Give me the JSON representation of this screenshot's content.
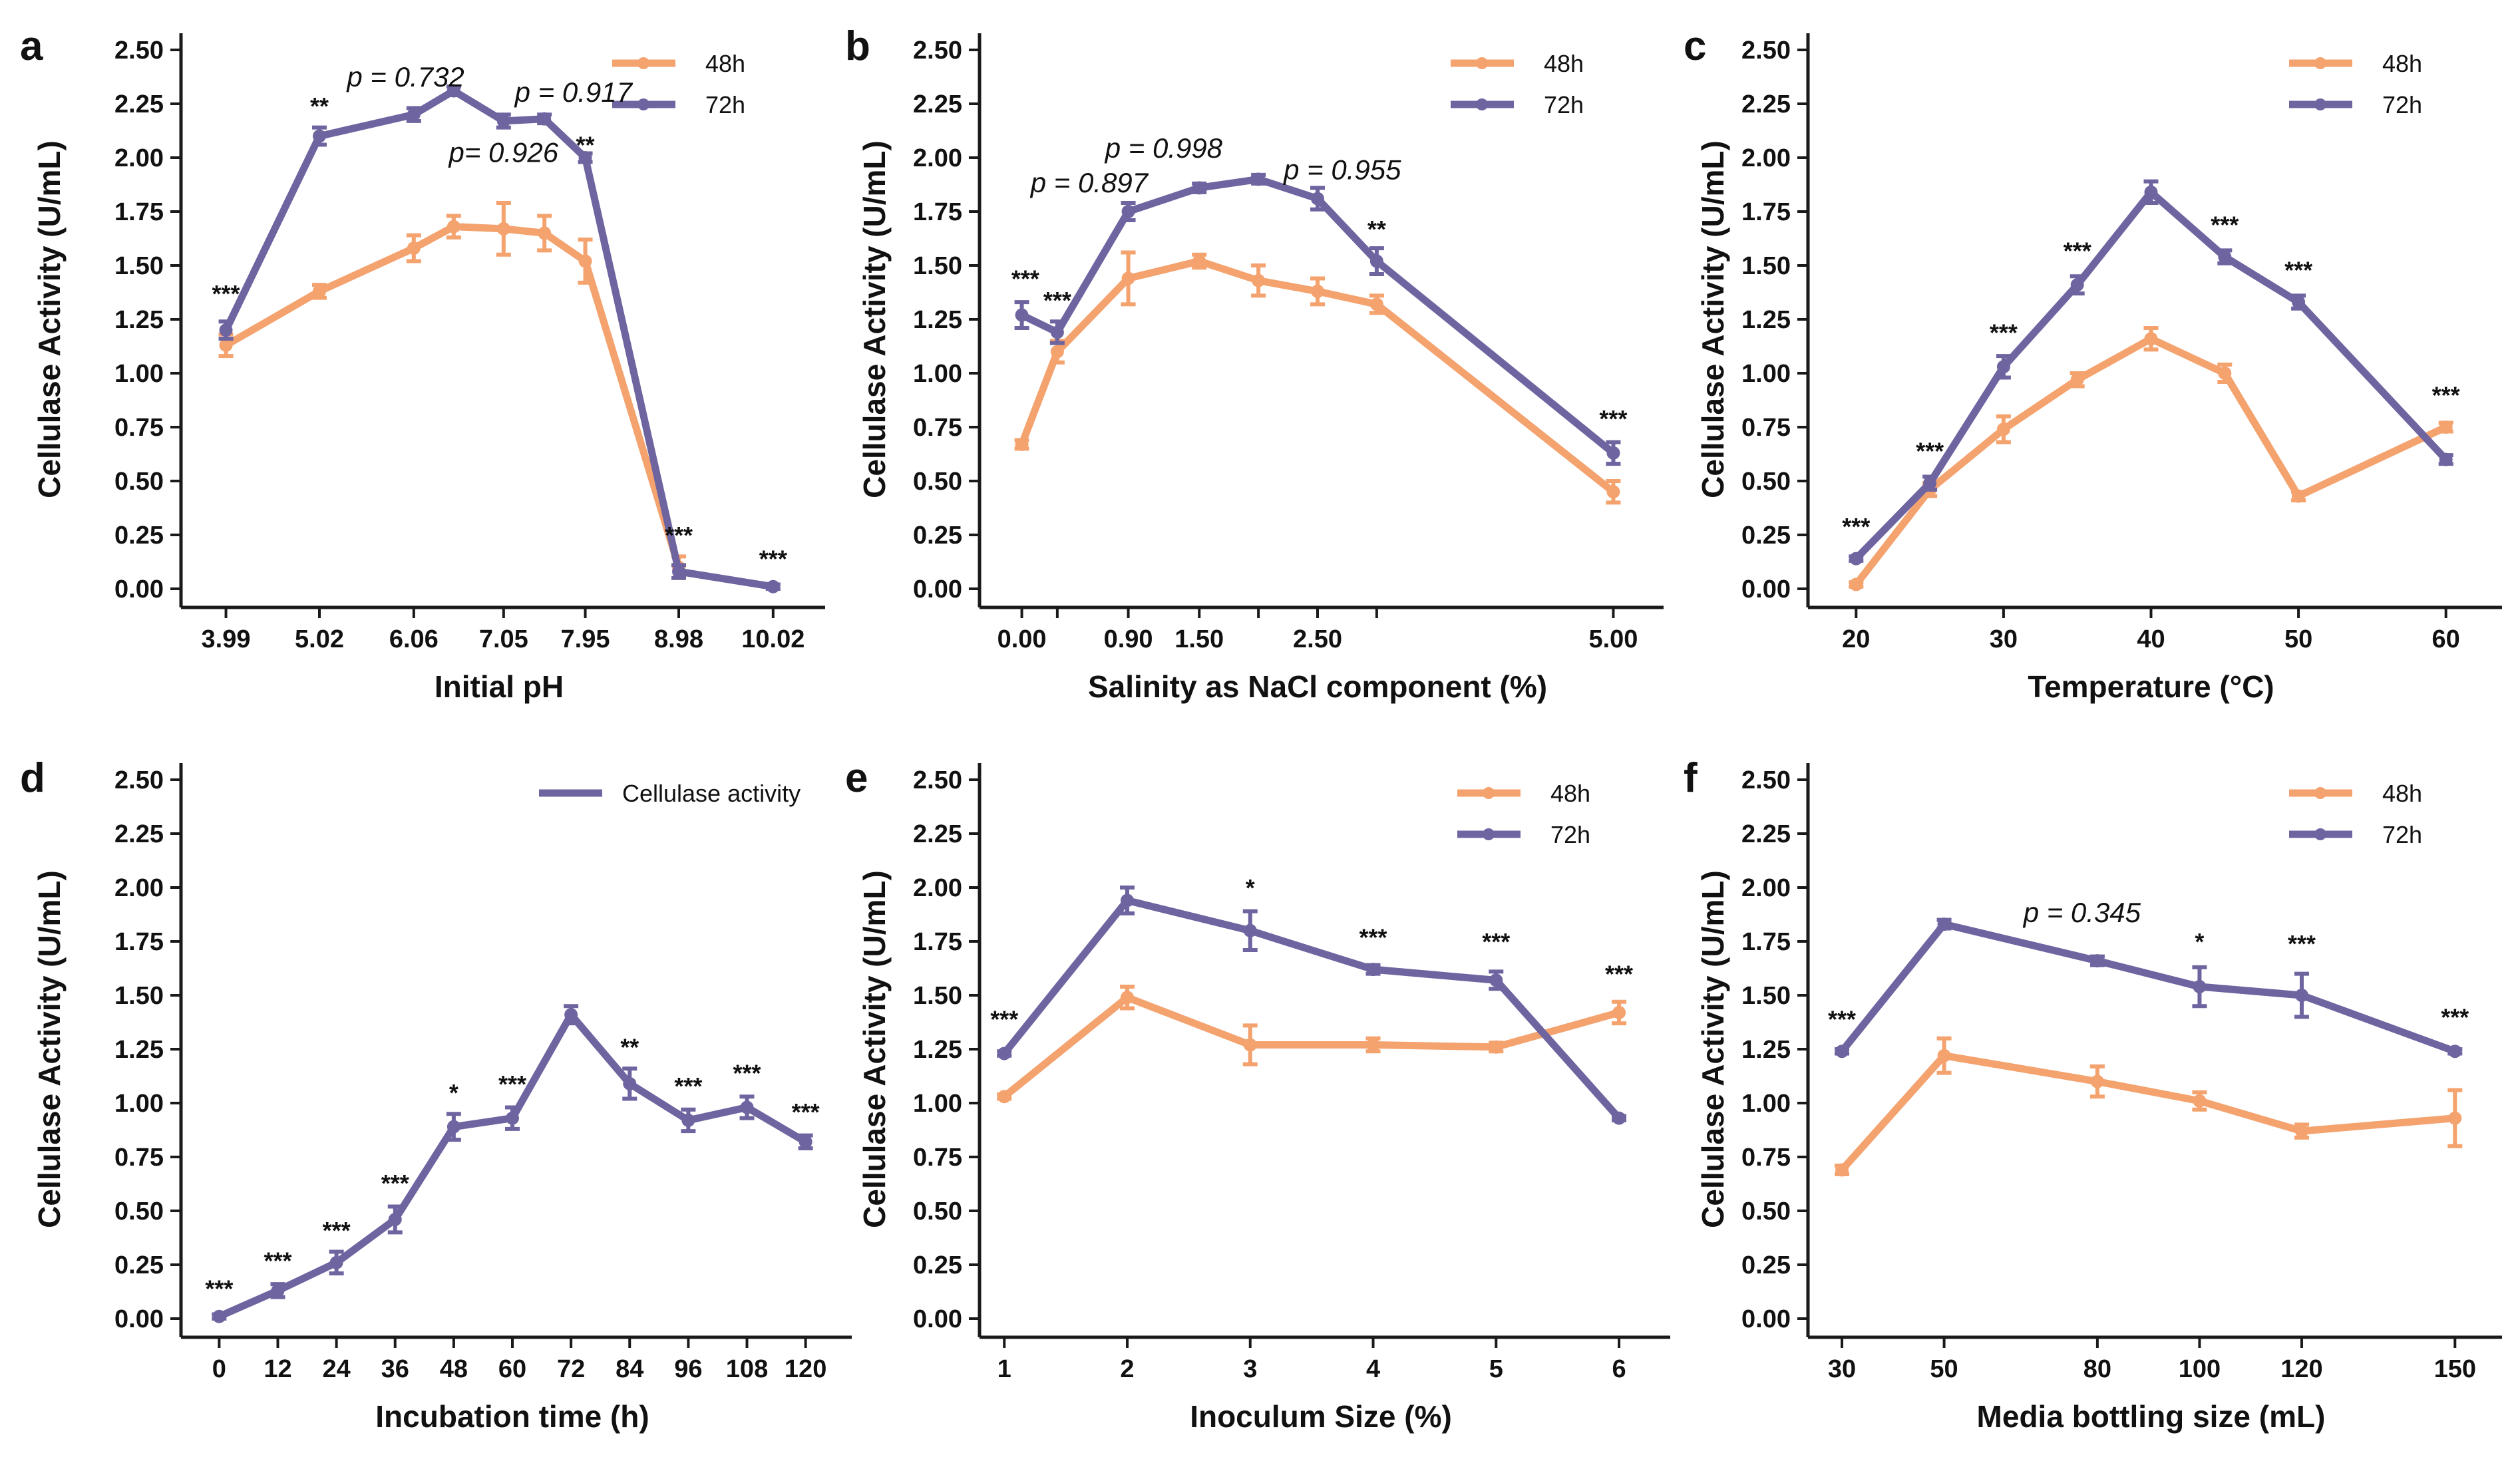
{
  "colors": {
    "s48h": "#F4A26E",
    "s72h": "#6E64A0",
    "axis": "#1a1a1a",
    "text": "#111111"
  },
  "chart_data": [
    {
      "type": "line",
      "panel": "a",
      "xlabel": "Initial pH",
      "ylabel": "Cellulase Activity (U/mL)",
      "ylim": [
        0,
        2.5
      ],
      "yticks": [
        "0.00",
        "0.25",
        "0.50",
        "0.75",
        "1.00",
        "1.25",
        "1.50",
        "1.75",
        "2.00",
        "2.25",
        "2.50"
      ],
      "xlim": [
        3.7,
        10.3
      ],
      "xticks": [
        3.99,
        5.02,
        6.06,
        7.05,
        7.95,
        8.98,
        10.02
      ],
      "xtick_labels": [
        "3.99",
        "5.02",
        "6.06",
        "7.05",
        "7.95",
        "8.98",
        "10.02"
      ],
      "legend": {
        "position": "top-right",
        "entries": [
          "48h",
          "72h"
        ]
      },
      "series": [
        {
          "name": "48h",
          "x": [
            3.99,
            5.02,
            6.06,
            6.5,
            7.05,
            7.5,
            7.95,
            8.98
          ],
          "y": [
            1.13,
            1.38,
            1.58,
            1.68,
            1.67,
            1.65,
            1.52,
            0.1
          ],
          "err": [
            0.05,
            0.03,
            0.06,
            0.05,
            0.12,
            0.08,
            0.1,
            0.05
          ]
        },
        {
          "name": "72h",
          "x": [
            3.99,
            5.02,
            6.06,
            6.5,
            7.05,
            7.5,
            7.95,
            8.98,
            10.02
          ],
          "y": [
            1.2,
            2.1,
            2.2,
            2.31,
            2.17,
            2.18,
            2.0,
            0.08,
            0.01
          ],
          "err": [
            0.04,
            0.04,
            0.03,
            0.02,
            0.03,
            0.02,
            0.02,
            0.03,
            0.01
          ]
        }
      ],
      "annotations": [
        {
          "text": "***",
          "x": 3.99,
          "y": 1.33,
          "style": "sig"
        },
        {
          "text": "**",
          "x": 5.02,
          "y": 2.2,
          "style": "sig"
        },
        {
          "text": "p = 0.732",
          "x": 5.97,
          "y": 2.33,
          "style": "p"
        },
        {
          "text": "p = 0.917",
          "x": 7.82,
          "y": 2.26,
          "style": "p"
        },
        {
          "text": "p= 0.926",
          "x": 7.05,
          "y": 1.98,
          "style": "p"
        },
        {
          "text": "**",
          "x": 7.95,
          "y": 2.02,
          "style": "sig"
        },
        {
          "text": "***",
          "x": 8.98,
          "y": 0.21,
          "style": "sig"
        },
        {
          "text": "***",
          "x": 10.02,
          "y": 0.1,
          "style": "sig"
        }
      ]
    },
    {
      "type": "line",
      "panel": "b",
      "xlabel": "Salinity as NaCl component (%)",
      "ylabel": "Cellulase Activity (U/mL)",
      "ylim": [
        0,
        2.5
      ],
      "yticks": [
        "0.00",
        "0.25",
        "0.50",
        "0.75",
        "1.00",
        "1.25",
        "1.50",
        "1.75",
        "2.00",
        "2.25",
        "2.50"
      ],
      "xlim": [
        -0.2,
        5.2
      ],
      "xticks": [
        0.0,
        0.3,
        0.9,
        1.5,
        2.0,
        2.5,
        3.0,
        5.0
      ],
      "xtick_labels": [
        "0.00",
        "",
        "0.90",
        "1.50",
        "",
        "2.50",
        "",
        "5.00"
      ],
      "legend": {
        "position": "top-right",
        "entries": [
          "48h",
          "72h"
        ]
      },
      "series": [
        {
          "name": "48h",
          "x": [
            0.0,
            0.3,
            0.9,
            1.5,
            2.0,
            2.5,
            3.0,
            5.0
          ],
          "y": [
            0.67,
            1.1,
            1.44,
            1.52,
            1.43,
            1.38,
            1.32,
            0.45
          ],
          "err": [
            0.02,
            0.05,
            0.12,
            0.03,
            0.07,
            0.06,
            0.04,
            0.05
          ]
        },
        {
          "name": "72h",
          "x": [
            0.0,
            0.3,
            0.9,
            1.5,
            2.0,
            2.5,
            3.0,
            5.0
          ],
          "y": [
            1.27,
            1.19,
            1.75,
            1.86,
            1.9,
            1.81,
            1.52,
            0.63
          ],
          "err": [
            0.06,
            0.05,
            0.04,
            0.02,
            0.02,
            0.05,
            0.06,
            0.05
          ]
        }
      ],
      "annotations": [
        {
          "text": "***",
          "x": 0.03,
          "y": 1.4,
          "style": "sig"
        },
        {
          "text": "***",
          "x": 0.3,
          "y": 1.3,
          "style": "sig"
        },
        {
          "text": "p = 0.897",
          "x": 0.57,
          "y": 1.84,
          "style": "p"
        },
        {
          "text": "p = 0.998",
          "x": 1.2,
          "y": 2.0,
          "style": "p"
        },
        {
          "text": "p = 0.955",
          "x": 2.71,
          "y": 1.9,
          "style": "p"
        },
        {
          "text": "**",
          "x": 3.0,
          "y": 1.63,
          "style": "sig"
        },
        {
          "text": "***",
          "x": 5.0,
          "y": 0.75,
          "style": "sig"
        }
      ]
    },
    {
      "type": "line",
      "panel": "c",
      "xlabel": "Temperature (°C)",
      "ylabel": "Cellulase Activity (U/mL)",
      "ylim": [
        0,
        2.5
      ],
      "yticks": [
        "0.00",
        "0.25",
        "0.50",
        "0.75",
        "1.00",
        "1.25",
        "1.50",
        "1.75",
        "2.00",
        "2.25",
        "2.50"
      ],
      "xlim": [
        18,
        62
      ],
      "xticks": [
        20,
        30,
        40,
        50,
        60
      ],
      "xtick_labels": [
        "20",
        "30",
        "40",
        "50",
        "60"
      ],
      "legend": {
        "position": "top-right",
        "entries": [
          "48h",
          "72h"
        ]
      },
      "series": [
        {
          "name": "48h",
          "x": [
            20,
            25,
            30,
            35,
            40,
            45,
            50,
            60
          ],
          "y": [
            0.02,
            0.46,
            0.74,
            0.97,
            1.16,
            1.0,
            0.43,
            0.75
          ],
          "err": [
            0.01,
            0.03,
            0.06,
            0.03,
            0.05,
            0.04,
            0.02,
            0.02
          ]
        },
        {
          "name": "72h",
          "x": [
            20,
            25,
            30,
            35,
            40,
            45,
            50,
            60
          ],
          "y": [
            0.14,
            0.49,
            1.03,
            1.41,
            1.84,
            1.54,
            1.33,
            0.6
          ],
          "err": [
            0.01,
            0.03,
            0.05,
            0.04,
            0.05,
            0.03,
            0.03,
            0.02
          ]
        }
      ],
      "annotations": [
        {
          "text": "***",
          "x": 20,
          "y": 0.25,
          "style": "sig"
        },
        {
          "text": "***",
          "x": 25,
          "y": 0.6,
          "style": "sig"
        },
        {
          "text": "***",
          "x": 30,
          "y": 1.15,
          "style": "sig"
        },
        {
          "text": "***",
          "x": 35,
          "y": 1.53,
          "style": "sig"
        },
        {
          "text": "***",
          "x": 45,
          "y": 1.65,
          "style": "sig"
        },
        {
          "text": "***",
          "x": 50,
          "y": 1.44,
          "style": "sig"
        },
        {
          "text": "***",
          "x": 60,
          "y": 0.86,
          "style": "sig"
        }
      ]
    },
    {
      "type": "line",
      "panel": "d",
      "xlabel": "Incubation time (h)",
      "ylabel": "Cellulase Activity (U/mL)",
      "ylim": [
        0,
        2.5
      ],
      "yticks": [
        "0.00",
        "0.25",
        "0.50",
        "0.75",
        "1.00",
        "1.25",
        "1.50",
        "1.75",
        "2.00",
        "2.25",
        "2.50"
      ],
      "xlim": [
        -4,
        124
      ],
      "xticks": [
        0,
        12,
        24,
        36,
        48,
        60,
        72,
        84,
        96,
        108,
        120
      ],
      "xtick_labels": [
        "0",
        "12",
        "24",
        "36",
        "48",
        "60",
        "72",
        "84",
        "96",
        "108",
        "120"
      ],
      "legend": {
        "position": "top-right",
        "entries": [
          "Cellulase activity"
        ]
      },
      "series": [
        {
          "name": "Cellulase activity",
          "x": [
            0,
            12,
            24,
            36,
            48,
            60,
            72,
            84,
            96,
            108,
            120
          ],
          "y": [
            0.01,
            0.13,
            0.26,
            0.46,
            0.89,
            0.93,
            1.41,
            1.09,
            0.92,
            0.98,
            0.82
          ],
          "err": [
            0.01,
            0.03,
            0.05,
            0.06,
            0.06,
            0.05,
            0.04,
            0.07,
            0.05,
            0.05,
            0.03
          ]
        }
      ],
      "annotations": [
        {
          "text": "***",
          "x": 0,
          "y": 0.1,
          "style": "sig"
        },
        {
          "text": "***",
          "x": 12,
          "y": 0.23,
          "style": "sig"
        },
        {
          "text": "***",
          "x": 24,
          "y": 0.37,
          "style": "sig"
        },
        {
          "text": "***",
          "x": 36,
          "y": 0.59,
          "style": "sig"
        },
        {
          "text": "*",
          "x": 48,
          "y": 1.01,
          "style": "sig"
        },
        {
          "text": "***",
          "x": 60,
          "y": 1.05,
          "style": "sig"
        },
        {
          "text": "**",
          "x": 84,
          "y": 1.22,
          "style": "sig"
        },
        {
          "text": "***",
          "x": 96,
          "y": 1.04,
          "style": "sig"
        },
        {
          "text": "***",
          "x": 108,
          "y": 1.1,
          "style": "sig"
        },
        {
          "text": "***",
          "x": 120,
          "y": 0.92,
          "style": "sig"
        }
      ]
    },
    {
      "type": "line",
      "panel": "e",
      "xlabel": "Inoculum Size (%)",
      "ylabel": "Cellulase Activity (U/mL)",
      "ylim": [
        0,
        2.5
      ],
      "yticks": [
        "0.00",
        "0.25",
        "0.50",
        "0.75",
        "1.00",
        "1.25",
        "1.50",
        "1.75",
        "2.00",
        "2.25",
        "2.50"
      ],
      "xlim": [
        0.95,
        6.2
      ],
      "xticks": [
        1,
        2,
        3,
        4,
        5,
        6
      ],
      "xtick_labels": [
        "1",
        "2",
        "3",
        "4",
        "5",
        "6"
      ],
      "legend": {
        "position": "top-right",
        "entries": [
          "48h",
          "72h"
        ]
      },
      "series": [
        {
          "name": "48h",
          "x": [
            1,
            2,
            3,
            4,
            5,
            6
          ],
          "y": [
            1.03,
            1.49,
            1.27,
            1.27,
            1.26,
            1.42
          ],
          "err": [
            0.01,
            0.05,
            0.09,
            0.03,
            0.02,
            0.05
          ]
        },
        {
          "name": "72h",
          "x": [
            1,
            2,
            3,
            4,
            5,
            6
          ],
          "y": [
            1.23,
            1.94,
            1.8,
            1.62,
            1.57,
            0.93
          ],
          "err": [
            0.01,
            0.06,
            0.09,
            0.02,
            0.04,
            0.01
          ]
        }
      ],
      "annotations": [
        {
          "text": "***",
          "x": 1,
          "y": 1.35,
          "style": "sig"
        },
        {
          "text": "*",
          "x": 3,
          "y": 1.96,
          "style": "sig"
        },
        {
          "text": "***",
          "x": 4,
          "y": 1.73,
          "style": "sig"
        },
        {
          "text": "***",
          "x": 5,
          "y": 1.71,
          "style": "sig"
        },
        {
          "text": "***",
          "x": 6,
          "y": 1.56,
          "style": "sig"
        }
      ]
    },
    {
      "type": "line",
      "panel": "f",
      "xlabel": "Media bottling size (mL)",
      "ylabel": "Cellulase Activity (U/mL)",
      "ylim": [
        0,
        2.5
      ],
      "yticks": [
        "0.00",
        "0.25",
        "0.50",
        "0.75",
        "1.00",
        "1.25",
        "1.50",
        "1.75",
        "2.00",
        "2.25",
        "2.50"
      ],
      "xlim": [
        27,
        154
      ],
      "xticks": [
        30,
        50,
        80,
        100,
        120,
        150
      ],
      "xtick_labels": [
        "30",
        "50",
        "80",
        "100",
        "120",
        "150"
      ],
      "legend": {
        "position": "top-right",
        "entries": [
          "48h",
          "72h"
        ]
      },
      "series": [
        {
          "name": "48h",
          "x": [
            30,
            50,
            80,
            100,
            120,
            150
          ],
          "y": [
            0.69,
            1.22,
            1.1,
            1.01,
            0.87,
            0.93
          ],
          "err": [
            0.02,
            0.08,
            0.07,
            0.04,
            0.03,
            0.13
          ]
        },
        {
          "name": "72h",
          "x": [
            30,
            50,
            80,
            100,
            120,
            150
          ],
          "y": [
            1.24,
            1.83,
            1.66,
            1.54,
            1.5,
            1.24
          ],
          "err": [
            0.01,
            0.02,
            0.02,
            0.09,
            0.1,
            0.01
          ]
        }
      ],
      "annotations": [
        {
          "text": "***",
          "x": 30,
          "y": 1.35,
          "style": "sig"
        },
        {
          "text": "p = 0.345",
          "x": 77,
          "y": 1.84,
          "style": "p"
        },
        {
          "text": "*",
          "x": 100,
          "y": 1.71,
          "style": "sig"
        },
        {
          "text": "***",
          "x": 120,
          "y": 1.7,
          "style": "sig"
        },
        {
          "text": "***",
          "x": 150,
          "y": 1.36,
          "style": "sig"
        }
      ]
    }
  ]
}
